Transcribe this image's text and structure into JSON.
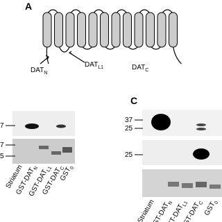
{
  "panel_a": {
    "label": "A",
    "domains": [
      {
        "main": "DAT",
        "sub": "N"
      },
      {
        "main": "DAT",
        "sub": "L1"
      },
      {
        "main": "DAT",
        "sub": "C"
      }
    ]
  },
  "panel_b": {
    "markers": [
      "7",
      "7",
      "5"
    ],
    "lanes": [
      {
        "main": "Striatum",
        "sub": ""
      },
      {
        "main": "GST-DAT",
        "sub": "N"
      },
      {
        "main": "GST-DAT",
        "sub": "L1"
      },
      {
        "main": "GST-DAT",
        "sub": "C"
      },
      {
        "main": "GST",
        "sub": "0"
      }
    ]
  },
  "panel_c": {
    "label": "C",
    "markers": [
      "37",
      "25",
      "25"
    ],
    "lanes": [
      {
        "main": "Striatum",
        "sub": ""
      },
      {
        "main": "GST-DAT",
        "sub": "N"
      },
      {
        "main": "GST-DAT",
        "sub": "L1"
      },
      {
        "main": "GST-DAT",
        "sub": "C"
      },
      {
        "main": "GST",
        "sub": "0"
      }
    ]
  }
}
